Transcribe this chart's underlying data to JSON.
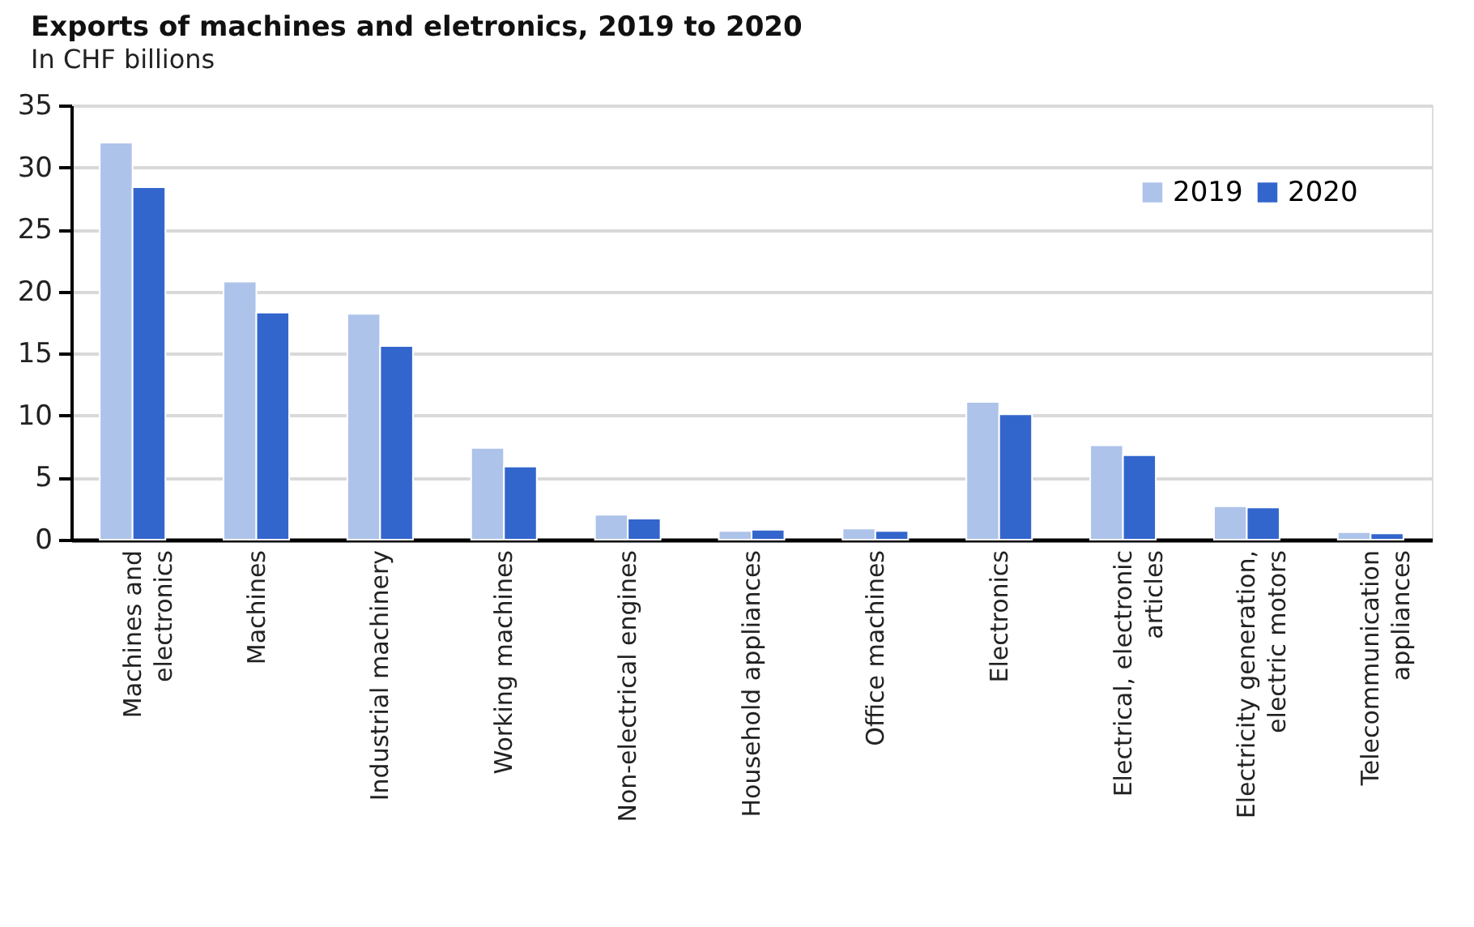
{
  "chart_data": {
    "type": "bar",
    "title": "Exports of machines and eletronics, 2019 to 2020",
    "subtitle": "In CHF billions",
    "categories": [
      "Machines and electronics",
      "Machines",
      "Industrial machinery",
      "Working machines",
      "Non-electrical engines",
      "Household appliances",
      "Office machines",
      "Electronics",
      "Electrical, electronic articles",
      "Electricity generation, electric motors",
      "Telecommunication appliances"
    ],
    "series": [
      {
        "name": "2019",
        "color": "#aec3ea",
        "values": [
          32.0,
          20.8,
          18.2,
          7.4,
          2.0,
          0.7,
          0.9,
          11.1,
          7.6,
          2.7,
          0.6
        ]
      },
      {
        "name": "2020",
        "color": "#3366cc",
        "values": [
          28.4,
          18.3,
          15.6,
          5.9,
          1.7,
          0.8,
          0.7,
          10.1,
          6.8,
          2.6,
          0.5
        ]
      }
    ],
    "ylim": [
      0,
      35
    ],
    "yticks": [
      0,
      5,
      10,
      15,
      20,
      25,
      30,
      35
    ],
    "grid": "y",
    "legend": "top right"
  }
}
